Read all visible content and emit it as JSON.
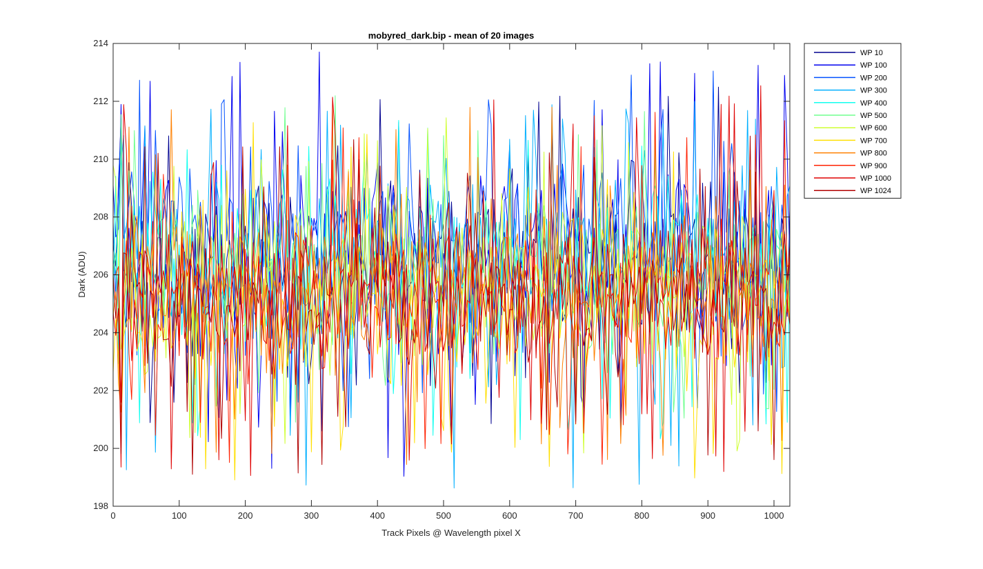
{
  "chart_data": {
    "type": "line",
    "title": "mobyred_dark.bip - mean of 20 images",
    "xlabel": "Track Pixels @ Wavelength pixel X",
    "ylabel": "Dark (ADU)",
    "xlim": [
      0,
      1024
    ],
    "ylim": [
      198,
      214
    ],
    "xticks": [
      0,
      100,
      200,
      300,
      400,
      500,
      600,
      700,
      800,
      900,
      1000
    ],
    "yticks": [
      198,
      200,
      202,
      204,
      206,
      208,
      210,
      212,
      214
    ],
    "grid": false,
    "legend_position": "outside top-right",
    "x_sampling": "every 4 pixels, 0 to 1024",
    "series": [
      {
        "name": "WP 10",
        "color": "#00008F",
        "center": 206.3,
        "spread": 2.6,
        "spike_max": 212.6,
        "spike_min": 200.2
      },
      {
        "name": "WP 100",
        "color": "#0000EF",
        "center": 206.5,
        "spread": 2.6,
        "spike_max": 213.8,
        "spike_min": 198.8
      },
      {
        "name": "WP 200",
        "color": "#0050FF",
        "center": 206.7,
        "spread": 2.5,
        "spike_max": 213.1,
        "spike_min": 200.5
      },
      {
        "name": "WP 300",
        "color": "#00AFFF",
        "center": 206.8,
        "spread": 2.5,
        "spike_max": 212.0,
        "spike_min": 198.6
      },
      {
        "name": "WP 400",
        "color": "#10FFEF",
        "center": 206.4,
        "spread": 2.4,
        "spike_max": 211.6,
        "spike_min": 200.2
      },
      {
        "name": "WP 500",
        "color": "#70FF8F",
        "center": 206.0,
        "spread": 2.4,
        "spike_max": 212.3,
        "spike_min": 200.4
      },
      {
        "name": "WP 600",
        "color": "#CFFF30",
        "center": 205.6,
        "spread": 2.4,
        "spike_max": 211.5,
        "spike_min": 199.5
      },
      {
        "name": "WP 700",
        "color": "#FFDF00",
        "center": 205.2,
        "spread": 2.4,
        "spike_max": 211.6,
        "spike_min": 198.7
      },
      {
        "name": "WP 800",
        "color": "#FF8000",
        "center": 205.4,
        "spread": 2.2,
        "spike_max": 212.0,
        "spike_min": 199.0
      },
      {
        "name": "WP 900",
        "color": "#FF2000",
        "center": 205.3,
        "spread": 2.2,
        "spike_max": 211.7,
        "spike_min": 198.8
      },
      {
        "name": "WP 1000",
        "color": "#DF0000",
        "center": 205.2,
        "spread": 2.1,
        "spike_max": 212.6,
        "spike_min": 199.0
      },
      {
        "name": "WP 1024",
        "color": "#B00000",
        "center": 205.1,
        "spread": 2.0,
        "spike_max": 210.8,
        "spike_min": 199.0
      }
    ]
  }
}
